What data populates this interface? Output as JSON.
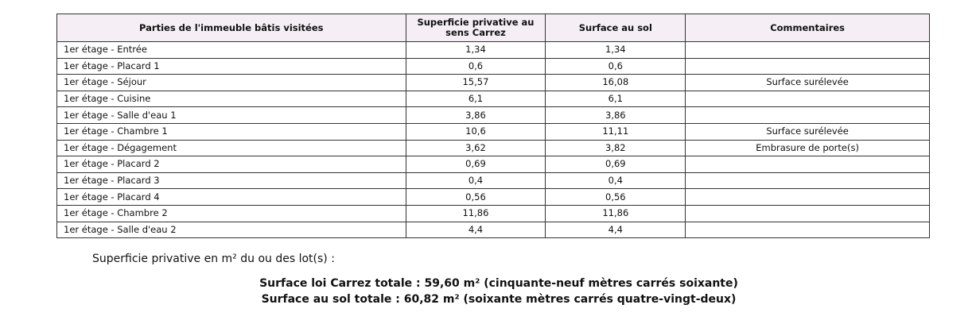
{
  "table": {
    "headers": [
      "Parties de l'immeuble bâtis visitées",
      "Superficie privative au sens Carrez",
      "Surface au sol",
      "Commentaires"
    ],
    "rows": [
      [
        "1er étage - Entrée",
        "1,34",
        "1,34",
        ""
      ],
      [
        "1er étage - Placard 1",
        "0,6",
        "0,6",
        ""
      ],
      [
        "1er étage - Séjour",
        "15,57",
        "16,08",
        "Surface surélevée"
      ],
      [
        "1er étage - Cuisine",
        "6,1",
        "6,1",
        ""
      ],
      [
        "1er étage - Salle d'eau 1",
        "3,86",
        "3,86",
        ""
      ],
      [
        "1er étage - Chambre 1",
        "10,6",
        "11,11",
        "Surface surélevée"
      ],
      [
        "1er étage - Dégagement",
        "3,62",
        "3,82",
        "Embrasure de porte(s)"
      ],
      [
        "1er étage - Placard 2",
        "0,69",
        "0,69",
        ""
      ],
      [
        "1er étage - Placard 3",
        "0,4",
        "0,4",
        ""
      ],
      [
        "1er étage - Placard 4",
        "0,56",
        "0,56",
        ""
      ],
      [
        "1er étage - Chambre 2",
        "11,86",
        "11,86",
        ""
      ],
      [
        "1er étage - Salle d'eau 2",
        "4,4",
        "4,4",
        ""
      ]
    ]
  },
  "summary": {
    "label": "Superficie privative en m² du ou des lot(s) :",
    "carrez_total": "Surface loi Carrez totale : 59,60 m² (cinquante-neuf mètres carrés soixante)",
    "sol_total": "Surface au sol totale : 60,82 m² (soixante mètres carrés quatre-vingt-deux)"
  },
  "colors": {
    "header_bg": "#f5eff5",
    "border": "#333333"
  }
}
